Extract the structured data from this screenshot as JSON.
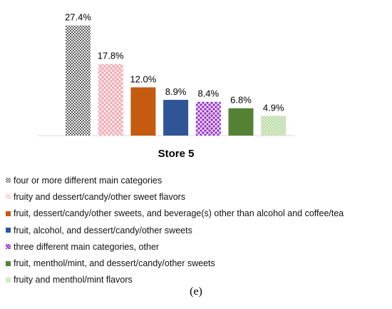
{
  "chart_data": {
    "type": "bar",
    "xlabel": "Store 5",
    "ylim": [
      0,
      30
    ],
    "categories": [
      "four or more different main categories",
      "fruity and dessert/candy/other sweet flavors",
      "fruit, dessert/candy/other sweets, and beverage(s) other than alcohol and coffee/tea",
      "fruit, alcohol, and dessert/candy/other sweets",
      "three different main categories, other",
      "fruit, menthol/mint, and dessert/candy/other sweets",
      "fruity and menthol/mint flavors"
    ],
    "values": [
      27.4,
      17.8,
      12.0,
      8.9,
      8.4,
      6.8,
      4.9
    ],
    "value_labels": [
      "27.4%",
      "17.8%",
      "12.0%",
      "8.9%",
      "8.4%",
      "6.8%",
      "4.9%"
    ],
    "colors": [
      "#595959",
      "#f4a6b0",
      "#c55a11",
      "#2f5597",
      "#9933cc",
      "#548235",
      "#a9d18e"
    ],
    "patterns": [
      "checker",
      "diamond",
      "solid",
      "solid",
      "diamond",
      "solid",
      "dots"
    ],
    "legend_position": "bottom"
  },
  "caption": "(e)"
}
